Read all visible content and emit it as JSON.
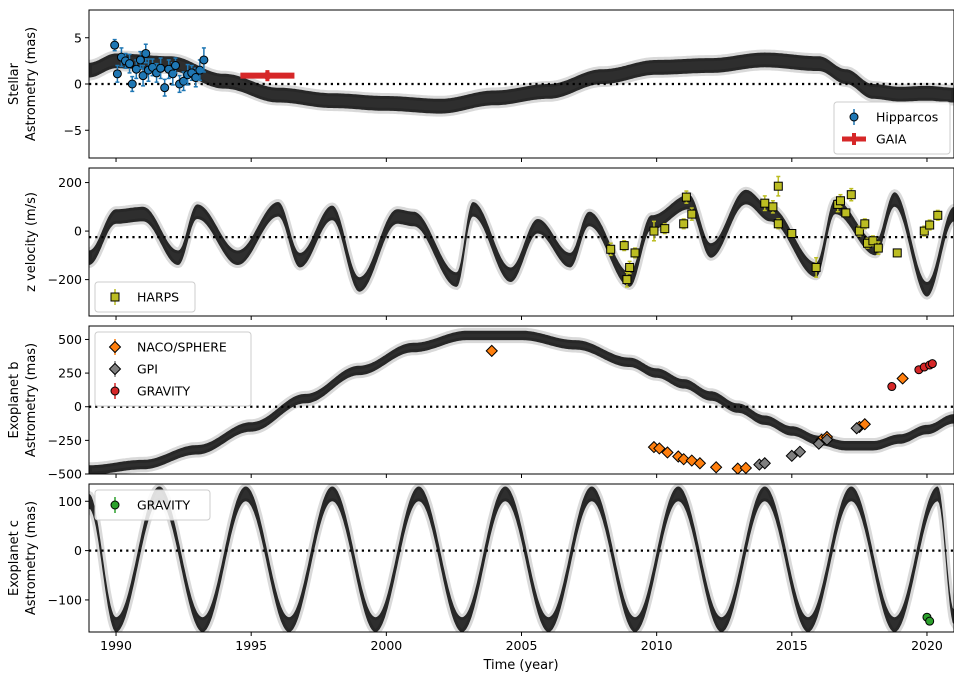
{
  "chart_data": [
    {
      "type": "scatter",
      "ylabel_lines": [
        "Stellar",
        "Astrometry (mas)"
      ],
      "ylim": [
        -8,
        8
      ],
      "yticks": [
        5,
        0,
        -5
      ],
      "ytick_labels": [
        "5",
        "0",
        "−5"
      ],
      "zero_line": 0,
      "band": {
        "x": [
          1989,
          1990,
          1992,
          1994,
          1996,
          1998,
          2000,
          2002,
          2004,
          2006,
          2008,
          2010,
          2012,
          2014,
          2016,
          2017,
          2018,
          2019,
          2020,
          2021
        ],
        "y": [
          1.5,
          2.5,
          2.2,
          0.3,
          -1.2,
          -1.8,
          -2.1,
          -2.4,
          -1.5,
          -0.8,
          0.8,
          1.8,
          2.0,
          2.6,
          2.2,
          0.8,
          -0.8,
          -1.1,
          -1.0,
          -1.2
        ],
        "half_width": 0.8,
        "color": "#000000"
      },
      "series": [
        {
          "name": "Hipparcos",
          "marker": "circle",
          "color": "#1f77b4",
          "points": [
            {
              "x": 1989.95,
              "y": 4.2,
              "err": 0.6
            },
            {
              "x": 1990.05,
              "y": 1.1,
              "err": 0.9
            },
            {
              "x": 1990.2,
              "y": 2.9,
              "err": 1.0
            },
            {
              "x": 1990.35,
              "y": 2.5,
              "err": 0.8
            },
            {
              "x": 1990.5,
              "y": 2.2,
              "err": 1.0
            },
            {
              "x": 1990.6,
              "y": 0.0,
              "err": 0.8
            },
            {
              "x": 1990.75,
              "y": 1.6,
              "err": 1.0
            },
            {
              "x": 1990.9,
              "y": 2.6,
              "err": 0.9
            },
            {
              "x": 1991.0,
              "y": 0.9,
              "err": 1.1
            },
            {
              "x": 1991.1,
              "y": 3.3,
              "err": 1.0
            },
            {
              "x": 1991.2,
              "y": 1.5,
              "err": 1.2
            },
            {
              "x": 1991.35,
              "y": 1.8,
              "err": 0.9
            },
            {
              "x": 1991.5,
              "y": 1.2,
              "err": 1.0
            },
            {
              "x": 1991.65,
              "y": 1.7,
              "err": 1.1
            },
            {
              "x": 1991.8,
              "y": -0.4,
              "err": 0.9
            },
            {
              "x": 1991.95,
              "y": 1.6,
              "err": 1.0
            },
            {
              "x": 1992.1,
              "y": 1.1,
              "err": 1.2
            },
            {
              "x": 1992.2,
              "y": 2.0,
              "err": 0.8
            },
            {
              "x": 1992.35,
              "y": 0.0,
              "err": 0.9
            },
            {
              "x": 1992.5,
              "y": 0.3,
              "err": 1.0
            },
            {
              "x": 1992.65,
              "y": 1.0,
              "err": 1.1
            },
            {
              "x": 1992.8,
              "y": 1.2,
              "err": 0.8
            },
            {
              "x": 1992.95,
              "y": 0.7,
              "err": 1.0
            },
            {
              "x": 1993.1,
              "y": 1.5,
              "err": 1.1
            },
            {
              "x": 1993.25,
              "y": 2.6,
              "err": 1.3
            }
          ]
        },
        {
          "name": "GAIA",
          "marker": "thick-bar",
          "color": "#d62728",
          "points": [
            {
              "x": 1995.6,
              "y": 0.9,
              "xerr": 1.0,
              "err": 0.6
            }
          ]
        }
      ],
      "legend": {
        "position": "lower-right",
        "entries": [
          "Hipparcos",
          "GAIA"
        ]
      }
    },
    {
      "type": "scatter",
      "ylabel_lines": [
        "z velocity (m/s)"
      ],
      "ylim": [
        -350,
        260
      ],
      "yticks": [
        200,
        0,
        -200
      ],
      "ytick_labels": [
        "200",
        "0",
        "−200"
      ],
      "zero_line": -25,
      "band": {
        "x": [
          1989,
          1990,
          1991,
          1992.3,
          1993,
          1994.5,
          1996,
          1996.8,
          1998,
          1999,
          2000.4,
          2001,
          2002.6,
          2003.2,
          2004.6,
          2005.6,
          2006.8,
          2007.5,
          2009.0,
          2009.8,
          2011.2,
          2012.0,
          2013.3,
          2014.2,
          2015.9,
          2016.6,
          2018.1,
          2018.8,
          2020.0,
          2021.0
        ],
        "y": [
          -110,
          60,
          70,
          -110,
          80,
          -110,
          90,
          -120,
          75,
          -220,
          60,
          50,
          -200,
          90,
          -180,
          20,
          -120,
          50,
          -200,
          35,
          120,
          -80,
          140,
          70,
          -160,
          100,
          -70,
          130,
          -240,
          70
        ],
        "half_width": 30,
        "color": "#000000"
      },
      "series": [
        {
          "name": "HARPS",
          "marker": "square",
          "color": "#bcbd22",
          "points": [
            {
              "x": 2008.3,
              "y": -75,
              "err": 25
            },
            {
              "x": 2008.8,
              "y": -60,
              "err": 20
            },
            {
              "x": 2008.9,
              "y": -200,
              "err": 30
            },
            {
              "x": 2009.0,
              "y": -150,
              "err": 25
            },
            {
              "x": 2009.2,
              "y": -90,
              "err": 20
            },
            {
              "x": 2009.9,
              "y": 0,
              "err": 40
            },
            {
              "x": 2010.3,
              "y": 10,
              "err": 20
            },
            {
              "x": 2011.0,
              "y": 30,
              "err": 20
            },
            {
              "x": 2011.1,
              "y": 140,
              "err": 25
            },
            {
              "x": 2011.3,
              "y": 70,
              "err": 25
            },
            {
              "x": 2014.0,
              "y": 115,
              "err": 30
            },
            {
              "x": 2014.3,
              "y": 100,
              "err": 25
            },
            {
              "x": 2014.5,
              "y": 30,
              "err": 20
            },
            {
              "x": 2014.5,
              "y": 185,
              "err": 40
            },
            {
              "x": 2015.0,
              "y": -10,
              "err": 15
            },
            {
              "x": 2015.9,
              "y": -150,
              "err": 40
            },
            {
              "x": 2016.7,
              "y": 110,
              "err": 30
            },
            {
              "x": 2016.8,
              "y": 125,
              "err": 25
            },
            {
              "x": 2017.0,
              "y": 75,
              "err": 15
            },
            {
              "x": 2017.2,
              "y": 150,
              "err": 25
            },
            {
              "x": 2017.5,
              "y": 0,
              "err": 20
            },
            {
              "x": 2017.7,
              "y": 30,
              "err": 20
            },
            {
              "x": 2017.8,
              "y": -50,
              "err": 20
            },
            {
              "x": 2018.0,
              "y": -40,
              "err": 20
            },
            {
              "x": 2018.2,
              "y": -70,
              "err": 25
            },
            {
              "x": 2018.9,
              "y": -90,
              "err": 15
            },
            {
              "x": 2019.9,
              "y": 0,
              "err": 20
            },
            {
              "x": 2020.1,
              "y": 25,
              "err": 20
            },
            {
              "x": 2020.4,
              "y": 65,
              "err": 20
            }
          ]
        }
      ],
      "legend": {
        "position": "lower-left",
        "entries": [
          "HARPS"
        ]
      }
    },
    {
      "type": "scatter",
      "ylabel_lines": [
        "Exoplanet b",
        "Astrometry (mas)"
      ],
      "ylim": [
        -500,
        600
      ],
      "yticks": [
        500,
        250,
        0,
        -250,
        -500
      ],
      "ytick_labels": [
        "500",
        "250",
        "0",
        "−250",
        "−500"
      ],
      "zero_line": 0,
      "band": {
        "x": [
          1989,
          1991,
          1993,
          1995,
          1997,
          1999,
          2001,
          2003,
          2005,
          2007,
          2009,
          2010,
          2011,
          2012,
          2013,
          2014,
          2015,
          2016,
          2017,
          2018,
          2019,
          2020,
          2021
        ],
        "y": [
          -470,
          -430,
          -320,
          -150,
          60,
          270,
          440,
          530,
          530,
          460,
          330,
          250,
          170,
          80,
          -10,
          -100,
          -180,
          -250,
          -290,
          -290,
          -240,
          -170,
          -90
        ],
        "half_width": 35,
        "color": "#000000"
      },
      "series": [
        {
          "name": "NACO/SPHERE",
          "marker": "diamond",
          "color": "#ff7f0e",
          "points": [
            {
              "x": 2003.9,
              "y": 415
            },
            {
              "x": 2009.9,
              "y": -300
            },
            {
              "x": 2010.1,
              "y": -310
            },
            {
              "x": 2010.4,
              "y": -340
            },
            {
              "x": 2010.8,
              "y": -370
            },
            {
              "x": 2011.0,
              "y": -390
            },
            {
              "x": 2011.3,
              "y": -400
            },
            {
              "x": 2011.6,
              "y": -420
            },
            {
              "x": 2012.2,
              "y": -450
            },
            {
              "x": 2013.0,
              "y": -460
            },
            {
              "x": 2013.3,
              "y": -455
            },
            {
              "x": 2016.1,
              "y": -245
            },
            {
              "x": 2016.3,
              "y": -225
            },
            {
              "x": 2017.5,
              "y": -150
            },
            {
              "x": 2017.7,
              "y": -130
            },
            {
              "x": 2019.1,
              "y": 210
            }
          ]
        },
        {
          "name": "GPI",
          "marker": "diamond",
          "color": "#7f7f7f",
          "points": [
            {
              "x": 2013.8,
              "y": -430
            },
            {
              "x": 2014.0,
              "y": -420
            },
            {
              "x": 2015.0,
              "y": -365
            },
            {
              "x": 2015.3,
              "y": -335
            },
            {
              "x": 2016.0,
              "y": -275
            },
            {
              "x": 2016.3,
              "y": -245
            },
            {
              "x": 2017.4,
              "y": -160
            }
          ]
        },
        {
          "name": "GRAVITY",
          "marker": "circle",
          "color": "#d62728",
          "points": [
            {
              "x": 2018.7,
              "y": 150
            },
            {
              "x": 2019.7,
              "y": 275
            },
            {
              "x": 2019.9,
              "y": 295
            },
            {
              "x": 2020.1,
              "y": 310
            },
            {
              "x": 2020.2,
              "y": 320
            }
          ]
        }
      ],
      "legend": {
        "position": "upper-left",
        "entries": [
          "NACO/SPHERE",
          "GPI",
          "GRAVITY"
        ]
      }
    },
    {
      "type": "scatter",
      "ylabel_lines": [
        "Exoplanet c",
        "Astrometry (mas)"
      ],
      "ylim": [
        -165,
        135
      ],
      "yticks": [
        100,
        0,
        -100
      ],
      "ytick_labels": [
        "100",
        "0",
        "−100"
      ],
      "zero_line": 0,
      "band": {
        "x": [
          1989,
          1990,
          1991.6,
          1993.2,
          1994.8,
          1996.4,
          1998.0,
          1999.6,
          2001.2,
          2002.8,
          2004.4,
          2006.0,
          2007.6,
          2009.2,
          2010.8,
          2012.4,
          2014.0,
          2015.6,
          2017.2,
          2018.8,
          2020.4,
          2021.0
        ],
        "y": [
          100,
          -150,
          115,
          -150,
          115,
          -150,
          115,
          -150,
          115,
          -150,
          115,
          -150,
          115,
          -150,
          115,
          -150,
          115,
          -150,
          115,
          -150,
          115,
          -135
        ],
        "half_width": 15,
        "color": "#000000"
      },
      "series": [
        {
          "name": "GRAVITY",
          "marker": "circle",
          "color": "#2ca02c",
          "points": [
            {
              "x": 2020.0,
              "y": -135
            },
            {
              "x": 2020.1,
              "y": -143
            }
          ]
        }
      ],
      "legend": {
        "position": "upper-left",
        "entries": [
          "GRAVITY"
        ]
      }
    }
  ],
  "x_axis": {
    "label": "Time (year)",
    "range": [
      1989,
      2021
    ],
    "ticks": [
      1990,
      1995,
      2000,
      2005,
      2010,
      2015,
      2020
    ],
    "tick_labels": [
      "1990",
      "1995",
      "2000",
      "2005",
      "2010",
      "2015",
      "2020"
    ]
  }
}
